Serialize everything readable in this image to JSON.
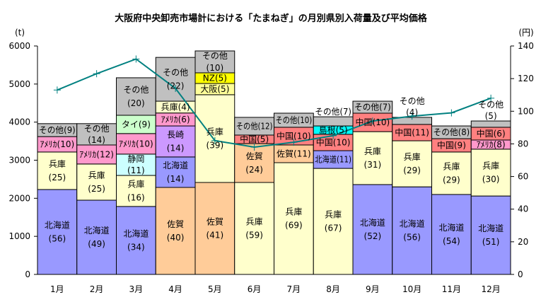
{
  "chart_data": {
    "type": "bar",
    "title": "大阪府中央卸売市場計における「たまねぎ」の月別県別入荷量及び平均価格",
    "ylabel": "(t)",
    "y2label": "(円)",
    "ylim": [
      0,
      6000
    ],
    "y2lim": [
      0,
      140
    ],
    "yticks": [
      "0",
      "1000",
      "2000",
      "3000",
      "4000",
      "5000",
      "6000"
    ],
    "y2ticks": [
      "0",
      "20",
      "40",
      "60",
      "80",
      "100",
      "120",
      "140"
    ],
    "categories": [
      "1月",
      "2月",
      "3月",
      "4月",
      "5月",
      "6月",
      "7月",
      "8月",
      "9月",
      "10月",
      "11月",
      "12月"
    ],
    "colors": {
      "北海道": "#9999ff",
      "兵庫": "#ffffcc",
      "佐賀": "#ffcc99",
      "アメリカ": "#ff99cc",
      "その他": "#c0c0c0",
      "中国": "#ff8080",
      "タイ": "#ccffcc",
      "静岡": "#ccffff",
      "長崎": "#cc99ff",
      "大阪": "#ffff99",
      "NZ": "#ffff00",
      "島根": "#00ffff"
    },
    "line_color": "#008080",
    "stacks": [
      [
        {
          "name": "北海道",
          "value": 2230,
          "label": "北海道\n(56)"
        },
        {
          "name": "兵庫",
          "value": 985,
          "label": "兵庫\n(25)"
        },
        {
          "name": "アメリカ",
          "value": 405,
          "label": "ｱﾒﾘｶ(10)"
        },
        {
          "name": "その他",
          "value": 340,
          "label": "その他(9)"
        }
      ],
      [
        {
          "name": "北海道",
          "value": 1950,
          "label": "北海道\n(49)"
        },
        {
          "name": "兵庫",
          "value": 950,
          "label": "兵庫\n(25)"
        },
        {
          "name": "アメリカ",
          "value": 500,
          "label": "ｱﾒﾘｶ(12)"
        },
        {
          "name": "その他",
          "value": 560,
          "label": "その他\n(14)"
        }
      ],
      [
        {
          "name": "北海道",
          "value": 1785,
          "label": "北海道\n(34)"
        },
        {
          "name": "兵庫",
          "value": 815,
          "label": "兵庫\n(16)"
        },
        {
          "name": "静岡",
          "value": 560,
          "label": "静岡\n(11)"
        },
        {
          "name": "アメリカ",
          "value": 540,
          "label": "ｱﾒﾘｶ\n(10)"
        },
        {
          "name": "タイ",
          "value": 480,
          "label": "タイ\n(9)"
        },
        {
          "name": "その他",
          "value": 985,
          "label": "その他\n(20)"
        }
      ],
      [
        {
          "name": "佐賀",
          "value": 2285,
          "label": "佐賀\n(40)"
        },
        {
          "name": "北海道",
          "value": 800,
          "label": "北海道\n(14)"
        },
        {
          "name": "長崎",
          "value": 815,
          "label": "長崎\n(14)"
        },
        {
          "name": "アメリカ",
          "value": 340,
          "label": "ｱﾒﾘｶ(6)"
        },
        {
          "name": "兵庫",
          "value": 310,
          "label": "兵庫(4)"
        },
        {
          "name": "その他",
          "value": 1150,
          "label": "その他\n(22)"
        }
      ],
      [
        {
          "name": "佐賀",
          "value": 2415,
          "label": "佐賀\n(41)"
        },
        {
          "name": "兵庫",
          "value": 2305,
          "label": "兵庫\n(39)"
        },
        {
          "name": "大阪",
          "value": 295,
          "label": "大阪(5)"
        },
        {
          "name": "NZ",
          "value": 280,
          "label": "NZ(5)"
        },
        {
          "name": "その他",
          "value": 575,
          "label": "その他\n(10)"
        }
      ],
      [
        {
          "name": "兵庫",
          "value": 2415,
          "label": "兵庫\n(59)"
        },
        {
          "name": "佐賀",
          "value": 1020,
          "label": "佐賀\n(24)"
        },
        {
          "name": "中国",
          "value": 225,
          "label": "中国(5)"
        },
        {
          "name": "その他",
          "value": 465,
          "label": "その他(12)"
        }
      ],
      [
        {
          "name": "兵庫",
          "value": 2935,
          "label": "兵庫\n(69)"
        },
        {
          "name": "佐賀",
          "value": 465,
          "label": "佐賀(11)"
        },
        {
          "name": "中国",
          "value": 465,
          "label": "中国(10)"
        },
        {
          "name": "その他",
          "value": 370,
          "label": "その他(10)"
        }
      ],
      [
        {
          "name": "兵庫",
          "value": 2785,
          "label": "兵庫\n(67)"
        },
        {
          "name": "北海道",
          "value": 465,
          "label": "北海道(11)"
        },
        {
          "name": "中国",
          "value": 430,
          "label": "中国(10)"
        },
        {
          "name": "島根",
          "value": 220,
          "label": "島根(5)"
        },
        {
          "name": "その他",
          "value": 240,
          "label": "その他(7)"
        }
      ],
      [
        {
          "name": "北海道",
          "value": 2360,
          "label": "北海道\n(52)"
        },
        {
          "name": "兵庫",
          "value": 1390,
          "label": "兵庫\n(31)"
        },
        {
          "name": "中国",
          "value": 485,
          "label": "中国(10)"
        },
        {
          "name": "その他",
          "value": 315,
          "label": "その他(7)"
        }
      ],
      [
        {
          "name": "北海道",
          "value": 2300,
          "label": "北海道\n(56)"
        },
        {
          "name": "兵庫",
          "value": 1210,
          "label": "兵庫\n(29)"
        },
        {
          "name": "中国",
          "value": 430,
          "label": "中国(11)"
        },
        {
          "name": "その他",
          "value": 185,
          "label": "その他\n(4)"
        }
      ],
      [
        {
          "name": "北海道",
          "value": 2100,
          "label": "北海道\n(54)"
        },
        {
          "name": "兵庫",
          "value": 1115,
          "label": "兵庫\n(29)"
        },
        {
          "name": "中国",
          "value": 350,
          "label": "中国(9)"
        },
        {
          "name": "その他",
          "value": 335,
          "label": "その他(8)"
        }
      ],
      [
        {
          "name": "北海道",
          "value": 2060,
          "label": "北海道\n(51)"
        },
        {
          "name": "兵庫",
          "value": 1230,
          "label": "兵庫\n(30)"
        },
        {
          "name": "アメリカ",
          "value": 240,
          "label": "ｱﾒﾘｶ(8)"
        },
        {
          "name": "中国",
          "value": 335,
          "label": "中国(6)"
        },
        {
          "name": "その他",
          "value": 165,
          "label": "その他\n(5)"
        }
      ]
    ],
    "price_series": {
      "name": "平均価格",
      "values": [
        113,
        123,
        132,
        114,
        82,
        78,
        81,
        85,
        94,
        97,
        99,
        108
      ]
    }
  }
}
